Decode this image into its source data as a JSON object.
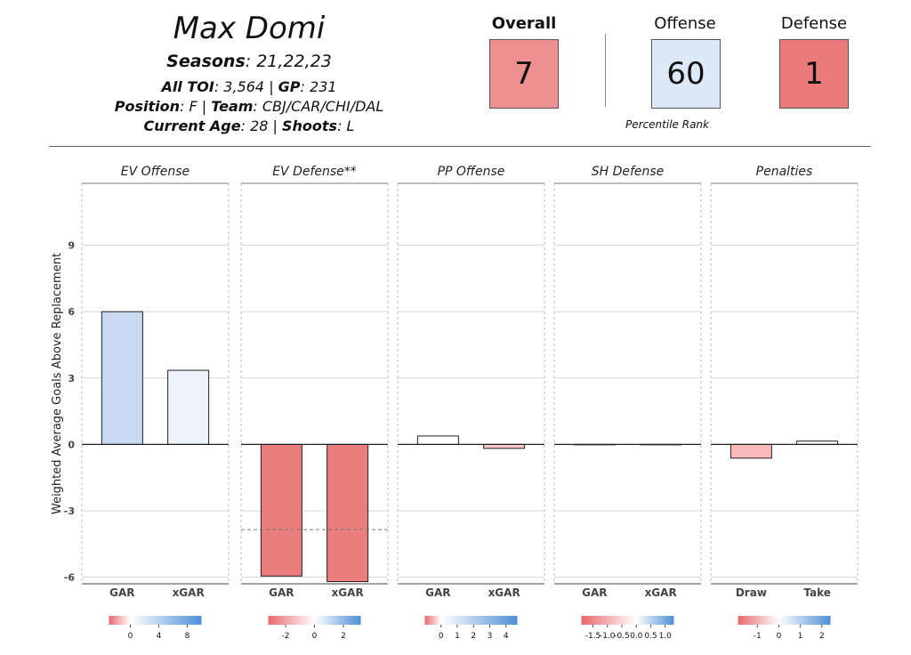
{
  "player": {
    "name": "Max Domi",
    "seasons_label": "Seasons",
    "seasons_value": ": 21,22,23",
    "toi_label": "All TOI",
    "toi_value": ": 3,564 | ",
    "gp_label": "GP",
    "gp_value": ": 231",
    "position_label": "Position",
    "position_value": ": F | ",
    "team_label": "Team",
    "team_value": ": CBJ/CAR/CHI/DAL",
    "age_label": "Current Age",
    "age_value": ": 28 | ",
    "shoots_label": "Shoots",
    "shoots_value": ": L"
  },
  "ranks": {
    "overall": {
      "label": "Overall",
      "value": "7",
      "color": "#ef9090"
    },
    "offense": {
      "label": "Offense",
      "value": "60",
      "color": "#dde9f6"
    },
    "defense": {
      "label": "Defense",
      "value": "1",
      "color": "#eb7a7a"
    },
    "caption": "Percentile Rank"
  },
  "chart_data": {
    "type": "bar",
    "ylabel": "Weighted Average Goals Above Replacement",
    "ylim": [
      -6.3,
      11.8
    ],
    "yticks": [
      -6,
      -3,
      0,
      3,
      6,
      9
    ],
    "ytick_labels": [
      "-6",
      "-3",
      "0",
      "3",
      "6",
      "9"
    ],
    "grid": true,
    "panels": [
      {
        "title": "EV Offense",
        "categories": [
          "GAR",
          "xGAR"
        ],
        "values": [
          6.0,
          3.35
        ],
        "colors": [
          "#cad9f2",
          "#eef3fb"
        ],
        "legend": {
          "min": -3,
          "max": 10,
          "ticks": [
            0,
            4,
            8
          ],
          "tick_labels": [
            "0",
            "4",
            "8"
          ]
        }
      },
      {
        "title": "EV Defense**",
        "categories": [
          "GAR",
          "xGAR"
        ],
        "values": [
          -5.95,
          -6.2
        ],
        "colors": [
          "#eb7d7d",
          "#eb7d7d"
        ],
        "reference_line": -3.85,
        "legend": {
          "min": -3.2,
          "max": 3.2,
          "ticks": [
            -2,
            0,
            2
          ],
          "tick_labels": [
            "-2",
            "0",
            "2"
          ]
        }
      },
      {
        "title": "PP Offense",
        "categories": [
          "GAR",
          "xGAR"
        ],
        "values": [
          0.38,
          -0.18
        ],
        "colors": [
          "#ffffff",
          "#f7c8c8"
        ],
        "legend": {
          "min": -1,
          "max": 4.7,
          "ticks": [
            0,
            1,
            2,
            3,
            4
          ],
          "tick_labels": [
            "0",
            "1",
            "2",
            "3",
            "4"
          ]
        }
      },
      {
        "title": "SH Defense",
        "categories": [
          "GAR",
          "xGAR"
        ],
        "values": [
          0.0,
          0.0
        ],
        "colors": [
          "#ffffff",
          "#ffffff"
        ],
        "legend": {
          "min": -1.9,
          "max": 1.3,
          "ticks": [
            -1.5,
            -1.0,
            -0.5,
            0.0,
            0.5,
            1.0
          ],
          "tick_labels": [
            "-1.5",
            "-1.0",
            "-0.5",
            "0.0",
            "0.5",
            "1.0"
          ]
        }
      },
      {
        "title": "Penalties",
        "categories": [
          "Draw",
          "Take"
        ],
        "values": [
          -0.62,
          0.15
        ],
        "colors": [
          "#f9b9b9",
          "#ffffff"
        ],
        "legend": {
          "min": -1.9,
          "max": 2.4,
          "ticks": [
            -1,
            0,
            1,
            2
          ],
          "tick_labels": [
            "-1",
            "0",
            "1",
            "2"
          ]
        }
      }
    ]
  }
}
